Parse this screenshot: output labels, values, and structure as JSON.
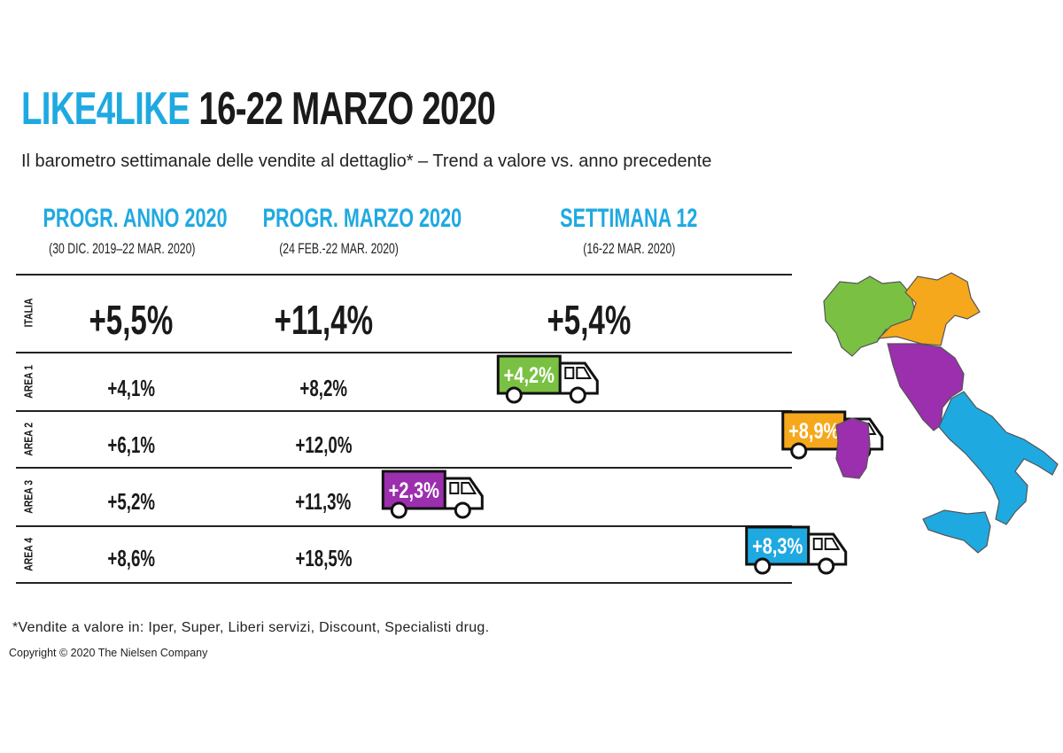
{
  "title": {
    "part1": "LIKE4LIKE",
    "part2": "16-22 MARZO 2020"
  },
  "subtitle": "Il barometro settimanale delle vendite al dettaglio* – Trend a valore vs. anno precedente",
  "columns": [
    {
      "heading": "PROGR. ANNO 2020",
      "range": "(30 DIC. 2019–22 MAR. 2020)"
    },
    {
      "heading": "PROGR. MARZO 2020",
      "range": "(24 FEB.-22 MAR. 2020)"
    },
    {
      "heading": "SETTIMANA 12",
      "range": "(16-22 MAR. 2020)"
    }
  ],
  "rows": [
    {
      "label": "ITALIA",
      "label_color": "#1a1a1a",
      "anno": "+5,5%",
      "marzo": "+11,4%",
      "settimana": "+5,4%"
    },
    {
      "label": "AREA 1",
      "label_color": "#7ac143",
      "anno": "+4,1%",
      "marzo": "+8,2%",
      "settimana": "+4,2%",
      "truck_color": "#7ac143"
    },
    {
      "label": "AREA 2",
      "label_color": "#f5a81c",
      "anno": "+6,1%",
      "marzo": "+12,0%",
      "settimana": "+8,9%",
      "truck_color": "#f5a81c"
    },
    {
      "label": "AREA 3",
      "label_color": "#9b2fae",
      "anno": "+5,2%",
      "marzo": "+11,3%",
      "settimana": "+2,3%",
      "truck_color": "#9b2fae"
    },
    {
      "label": "AREA 4",
      "label_color": "#e2231a",
      "anno": "+8,6%",
      "marzo": "+18,5%",
      "settimana": "+8,3%",
      "truck_color": "#1fa9e1"
    }
  ],
  "chart_data": {
    "type": "table",
    "title": "LIKE4LIKE 16-22 MARZO 2020",
    "subtitle": "Il barometro settimanale delle vendite al dettaglio* – Trend a valore vs. anno precedente",
    "columns": [
      "PROGR. ANNO 2020",
      "PROGR. MARZO 2020",
      "SETTIMANA 12"
    ],
    "categories": [
      "ITALIA",
      "AREA 1",
      "AREA 2",
      "AREA 3",
      "AREA 4"
    ],
    "series": [
      {
        "name": "PROGR. ANNO 2020",
        "values": [
          5.5,
          4.1,
          6.1,
          5.2,
          8.6
        ]
      },
      {
        "name": "PROGR. MARZO 2020",
        "values": [
          11.4,
          8.2,
          12.0,
          11.3,
          18.5
        ]
      },
      {
        "name": "SETTIMANA 12",
        "values": [
          5.4,
          4.2,
          8.9,
          2.3,
          8.3
        ]
      }
    ],
    "area_colors": {
      "AREA 1": "#7ac143",
      "AREA 2": "#f5a81c",
      "AREA 3": "#9b2fae",
      "AREA 4": "#1fa9e1"
    },
    "week_axis_range": [
      0,
      10
    ]
  },
  "map": {
    "area1_color": "#7ac143",
    "area2_color": "#f5a81c",
    "area3_color": "#9b2fae",
    "area4_color": "#1fa9e1"
  },
  "footnote": "*Vendite a valore in: Iper, Super, Liberi servizi, Discount, Specialisti drug.",
  "copyright": "Copyright © 2020 The Nielsen Company"
}
